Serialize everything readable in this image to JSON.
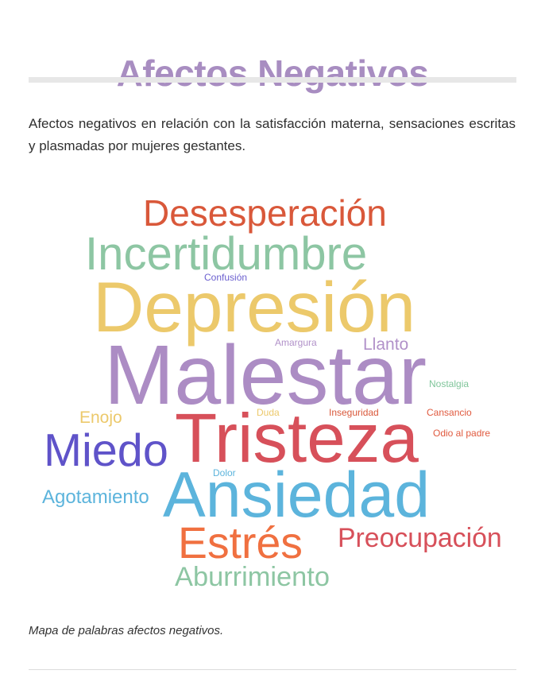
{
  "page": {
    "title": "Afectos Negativos",
    "title_color": "#a88dc1",
    "intro": "Afectos negativos en relación con la satisfacción materna, sensaciones escritas y plasmadas por mujeres gestantes.",
    "caption": "Mapa de palabras afectos negativos."
  },
  "word_cloud": {
    "words": [
      {
        "text": "Desesperación",
        "color": "#d9583a"
      },
      {
        "text": "Incertidumbre",
        "color": "#8dc6a3"
      },
      {
        "text": "Confusión",
        "color": "#6b5fcf"
      },
      {
        "text": "Depresión",
        "color": "#ecc96b"
      },
      {
        "text": "Amargura",
        "color": "#b191c9"
      },
      {
        "text": "Llanto",
        "color": "#b191c9"
      },
      {
        "text": "Malestar",
        "color": "#ac8cc4"
      },
      {
        "text": "Nostalgia",
        "color": "#7fc59a"
      },
      {
        "text": "Enojo",
        "color": "#ecc96b"
      },
      {
        "text": "Duda",
        "color": "#ecc96b"
      },
      {
        "text": "Inseguridad",
        "color": "#d9583a"
      },
      {
        "text": "Cansancio",
        "color": "#e05a3f"
      },
      {
        "text": "Odio al padre",
        "color": "#e05a3f"
      },
      {
        "text": "Tristeza",
        "color": "#d7505a"
      },
      {
        "text": "Miedo",
        "color": "#5f53c9"
      },
      {
        "text": "Dolor",
        "color": "#5cb4dc"
      },
      {
        "text": "Agotamiento",
        "color": "#5cb4dc"
      },
      {
        "text": "Ansiedad",
        "color": "#5cb4dc"
      },
      {
        "text": "Estrés",
        "color": "#f07040"
      },
      {
        "text": "Preocupación",
        "color": "#d7505a"
      },
      {
        "text": "Aburrimiento",
        "color": "#8dc6a3"
      }
    ]
  }
}
